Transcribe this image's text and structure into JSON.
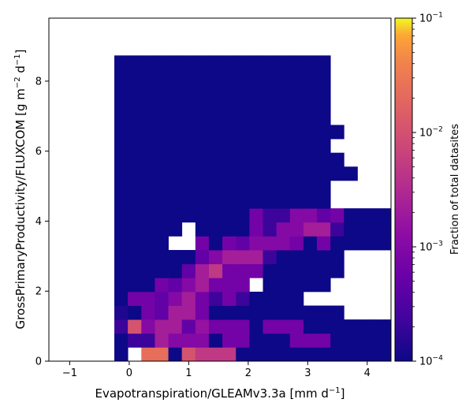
{
  "chart_data": {
    "type": "heatmap",
    "xlabel_main": "Evapotranspiration/GLEAMv3.3a [mm d",
    "xlabel_sup": "−1",
    "xlabel_end": "]",
    "ylabel_main": "GrossPrimaryProductivity/FLUXCOM [g m",
    "ylabel_sup1": "−2",
    "ylabel_mid": " d",
    "ylabel_sup2": "−1",
    "ylabel_end": "]",
    "colorbar_label": "Fraction of total datasites",
    "xlim": [
      -1.35,
      4.4
    ],
    "ylim": [
      0,
      9.8
    ],
    "x_ticks": [
      -1,
      0,
      1,
      2,
      3,
      4
    ],
    "x_tick_labels": [
      "−1",
      "0",
      "1",
      "2",
      "3",
      "4"
    ],
    "y_ticks": [
      0,
      2,
      4,
      6,
      8
    ],
    "y_tick_labels": [
      "0",
      "2",
      "4",
      "6",
      "8"
    ],
    "colorbar_scale": "log",
    "colorbar_range": [
      0.0001,
      0.1
    ],
    "colorbar_ticks": [
      0.0001,
      0.001,
      0.01,
      0.1
    ],
    "colorbar_tick_labels": [
      {
        "base": "10",
        "exp": "−4"
      },
      {
        "base": "10",
        "exp": "−3"
      },
      {
        "base": "10",
        "exp": "−2"
      },
      {
        "base": "10",
        "exp": "−1"
      }
    ],
    "colormap": "plasma",
    "bin_x_start": -0.25,
    "bin_y_start": 0,
    "bin_size_x": 0.227,
    "bin_size_y": 0.397,
    "log10_fraction_grid_rows_bottom_to_top": [
      "e.33;4555;;;;;;;;;;;;;;;",
      "ec96777;::;;;:::;;;;;;;",
      "ca7668<:::;:::;;;;;;;",
      "d;:866:;;;;;;;;;;",
      "e::876:9:9;;;;",
      "e;;:876:::.;;;;;",
      "e;;;;865:::;;;;;;",
      "e;;;;;876669;;;;;",
      "e;;;..:;:8777:;:;;;;;",
      "e;;;;.;;;;:977669;;;;;",
      "e;;;;;;;;;:99778:;;;;",
      "e;;;;;;;;;;;;;;;",
      "e;;;;;;;;;;;;;;;",
      "e;;;;;;;;;;;;;;;;;",
      "e;;;;;;;;;;;;;;;;",
      "e;;;;;;;;;;;;;;;",
      "e;;;;;;;;;;;;;;;;",
      "e;;;;;;;;;;;;;;;",
      "e;;;;;;;;;;;;;;;",
      "e;;;;;;;;;;;;;;;",
      "e;;;;;;;;;;;;;;;",
      "e;;;;;;;;;;;;;;;"
    ]
  }
}
